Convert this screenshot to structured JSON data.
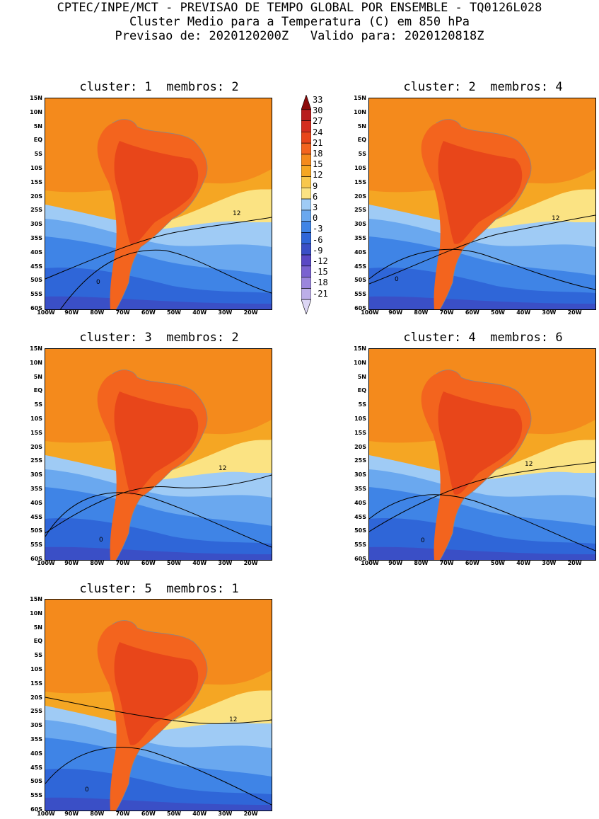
{
  "header": {
    "line1": "CPTEC/INPE/MCT - PREVISAO DE TEMPO GLOBAL POR ENSEMBLE - TQ0126L028",
    "line2": "Cluster Medio para a Temperatura (C) em 850 hPa",
    "line3": "Previsao de: 2020120200Z   Valido para: 2020120818Z"
  },
  "panels": [
    {
      "title": "cluster: 1  membros: 2"
    },
    {
      "title": "cluster: 2  membros: 4"
    },
    {
      "title": "cluster: 3  membros: 2"
    },
    {
      "title": "cluster: 4  membros: 6"
    },
    {
      "title": "cluster: 5  membros: 1"
    }
  ],
  "axes": {
    "lat_labels": [
      "15N",
      "10N",
      "5N",
      "EQ",
      "5S",
      "10S",
      "15S",
      "20S",
      "25S",
      "30S",
      "35S",
      "40S",
      "45S",
      "50S",
      "55S",
      "60S"
    ],
    "lon_labels": [
      "100W",
      "90W",
      "80W",
      "70W",
      "60W",
      "50W",
      "40W",
      "30W",
      "20W"
    ]
  },
  "contour_labels": {
    "c12": "12",
    "c0": "0"
  },
  "colorbar": {
    "labels": [
      "33",
      "30",
      "27",
      "24",
      "21",
      "18",
      "15",
      "12",
      "9",
      "6",
      "3",
      "0",
      "-3",
      "-6",
      "-9",
      "-12",
      "-15",
      "-18",
      "-21"
    ],
    "colors": [
      "#8b0a0a",
      "#b81e1e",
      "#d42e1f",
      "#e8461a",
      "#f3641e",
      "#f48a1c",
      "#f5a623",
      "#f8c74c",
      "#fbe383",
      "#9fcbf5",
      "#6aa8ef",
      "#3f84e6",
      "#2f66d8",
      "#3a4fc6",
      "#5a48c4",
      "#7a62d0",
      "#9b86dc",
      "#bcaee8",
      "#dcd6f4"
    ]
  }
}
